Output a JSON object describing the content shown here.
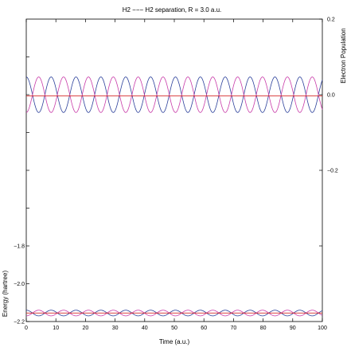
{
  "chart_data": {
    "type": "line",
    "title": "H2 −−− H2 separation, R = 3.0 a.u.",
    "xlabel": "Time (a.u.)",
    "ylabel_left": "Energy (hartree)",
    "ylabel_right": "Electron Population",
    "xlim": [
      0,
      100
    ],
    "ylim_left": [
      -2.2,
      -0.6
    ],
    "ylim_right": [
      -0.6,
      0.2
    ],
    "xticks": [
      "0",
      "10",
      "20",
      "30",
      "40",
      "50",
      "60",
      "70",
      "80",
      "90",
      "100"
    ],
    "xtick_values": [
      0,
      10,
      20,
      30,
      40,
      50,
      60,
      70,
      80,
      90,
      100
    ],
    "yticks_left": [
      "−1.8",
      "−2.0",
      "−2.2"
    ],
    "ytick_left_values": [
      -1.8,
      -2.0,
      -2.2
    ],
    "yticks_right": [
      "0.2",
      "0.0",
      "−0.2"
    ],
    "ytick_right_values": [
      0.2,
      0.0,
      -0.2
    ],
    "grid": false,
    "series": [
      {
        "axis": "right",
        "color": "#2a3f9a",
        "kind": "oscillation",
        "center": 0.0,
        "amplitude": 0.047,
        "period": 8.4,
        "phase": 0
      },
      {
        "axis": "right",
        "color": "#c83aa8",
        "kind": "oscillation",
        "center": 0.0,
        "amplitude": 0.047,
        "period": 8.4,
        "phase": 3.14159
      },
      {
        "axis": "right",
        "color": "#d62b2b",
        "kind": "constant",
        "value": -0.003
      },
      {
        "axis": "left",
        "color": "#2a3f9a",
        "kind": "oscillation",
        "center": -2.155,
        "amplitude": 0.015,
        "period": 8.4,
        "phase": 0
      },
      {
        "axis": "left",
        "color": "#c83aa8",
        "kind": "oscillation",
        "center": -2.155,
        "amplitude": 0.015,
        "period": 8.4,
        "phase": 3.14159
      },
      {
        "axis": "left",
        "color": "#d62b2b",
        "kind": "constant",
        "value": -2.155
      }
    ]
  }
}
